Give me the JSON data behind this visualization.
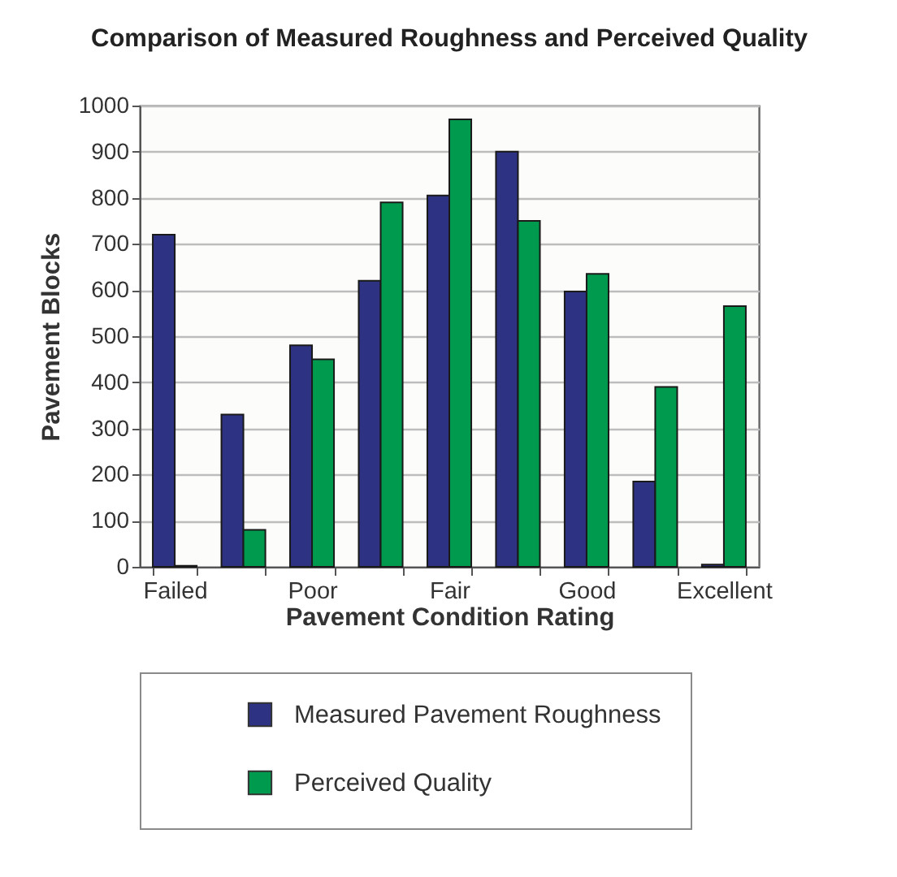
{
  "chart_data": {
    "type": "bar",
    "title": "Comparison of Measured Roughness and Perceived Quality",
    "xlabel": "Pavement Condition Rating",
    "ylabel": "Pavement Blocks",
    "categories": [
      "Failed",
      null,
      "Poor",
      null,
      "Fair",
      null,
      "Good",
      null,
      "Excellent"
    ],
    "series": [
      {
        "name": "Measured Pavement Roughness",
        "color": "#2e3283",
        "values": [
          720,
          330,
          480,
          620,
          805,
          900,
          597,
          185,
          5
        ]
      },
      {
        "name": "Perceived Quality",
        "color": "#009a4e",
        "values": [
          2,
          80,
          450,
          790,
          970,
          750,
          635,
          390,
          565
        ]
      }
    ],
    "ylim": [
      0,
      1000
    ],
    "yticks": [
      0,
      100,
      200,
      300,
      400,
      500,
      600,
      700,
      800,
      900,
      1000
    ],
    "grid": "y",
    "legend": "bottom"
  }
}
